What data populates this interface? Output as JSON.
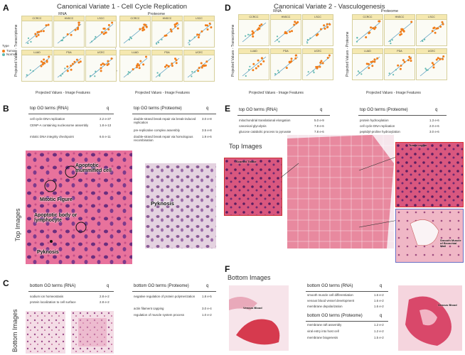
{
  "panels": {
    "A": {
      "letter": "A",
      "title": "Canonical Variate 1 - Cell Cycle Replication",
      "rna_label": "RNA",
      "proteome_label": "Proteome",
      "ylabel_rna": "Projected Values - Transcriptome",
      "ylabel_prot": "Projected Values - Proteome",
      "xlabel": "Projected Values - Image Features",
      "facets": [
        "CCRCC",
        "HNSCC",
        "LSCC",
        "LUAD",
        "PDA",
        "UCEC"
      ],
      "legend_title": "Type",
      "legend_items": [
        "Tumor",
        "Normal"
      ]
    },
    "D": {
      "letter": "D",
      "title": "Canonical Variate 2 - Vasculogenesis",
      "rna_label": "RNA",
      "proteome_label": "Proteome",
      "ylabel_rna": "Projected Values - Transcriptome",
      "ylabel_prot": "Projected Values - Proteome",
      "xlabel": "Projected Values - Image Features",
      "facets": [
        "CCRCC",
        "HNSCC",
        "LSCC",
        "LUAD",
        "PDA",
        "UCEC"
      ]
    },
    "B": {
      "letter": "B",
      "rna_header": "top GO terms (RNA)",
      "prot_header": "top GO terms (Proteome)",
      "q": "q",
      "rna_terms": [
        {
          "term": "cell cycle DNA replication",
          "q": "2.2 e-27"
        },
        {
          "term": "CENP-A containing nucleosome assembly",
          "q": "1.8 e-13"
        },
        {
          "term": "mitotic DNA integrity checkpoint",
          "q": "6.6 e-11"
        }
      ],
      "prot_terms": [
        {
          "term": "double-strand break repair via break-induced replication",
          "q": "3.0 e-8"
        },
        {
          "term": "pre-replicative complex assembly",
          "q": "3.5 e-8"
        },
        {
          "term": "double-strand break repair via homologous recombination",
          "q": "1.9 e-6"
        }
      ],
      "side_label": "Top Images",
      "annotations": [
        "Apoptotic mummified cell",
        "Mitotic Figure",
        "Apoptotic body or lymphocyte",
        "Pyknosis",
        "Pyknosis"
      ]
    },
    "C": {
      "letter": "C",
      "rna_header": "bottom GO terms (RNA)",
      "prot_header": "bottom GO terms (Proteome)",
      "q": "q",
      "rna_terms": [
        {
          "term": "sodium ion homeostasis",
          "q": "2.8 e-2"
        },
        {
          "term": "protein localization to cell surface",
          "q": "2.8 e-2"
        }
      ],
      "prot_terms": [
        {
          "term": "negative regulation of protein polymerization",
          "q": "1.8 e-5"
        },
        {
          "term": "actin filament capping",
          "q": "3.0 e-4"
        },
        {
          "term": "regulation of muscle system process",
          "q": "1.0 e-2"
        }
      ],
      "side_label": "Bottom Images"
    },
    "E": {
      "letter": "E",
      "rna_header": "top GO terms (RNA)",
      "prot_header": "top GO terms (Proteome)",
      "q": "q",
      "rna_terms": [
        {
          "term": "mitochondrial translational elongation",
          "q": "5.0 e-9"
        },
        {
          "term": "canonical glycolysis",
          "q": "7.8 e-6"
        },
        {
          "term": "glucose catabolic process to pyruvate",
          "q": "7.8 e-6"
        }
      ],
      "prot_terms": [
        {
          "term": "protein hydroxylation",
          "q": "1.3 e-6"
        },
        {
          "term": "cell cycle DNA replication",
          "q": "2.0 e-6"
        },
        {
          "term": "peptidyl-proline hydroxylation",
          "q": "3.0 e-6"
        }
      ],
      "side_label": "Top Images",
      "annotations": [
        "Scarred Tissue",
        "Tumor region",
        "Smooth Muscle of Bronchial Wall"
      ]
    },
    "F": {
      "letter": "F",
      "side_label": "Bottom Images",
      "rna_header": "bottom GO terms (RNA)",
      "prot_header": "bottom GO terms (Proteome)",
      "q": "q",
      "rna_terms": [
        {
          "term": "smooth muscle cell differentiation",
          "q": "1.6 e-2"
        },
        {
          "term": "venous blood vessel development",
          "q": "1.6 e-2"
        },
        {
          "term": "membrane depolarization",
          "q": "1.6 e-2"
        }
      ],
      "prot_terms": [
        {
          "term": "membrane raft assembly",
          "q": "1.2 e-2"
        },
        {
          "term": "viral entry into host cell",
          "q": "1.2 e-2"
        },
        {
          "term": "membrane biogenesis",
          "q": "1.5 e-2"
        }
      ],
      "annotations": [
        "Venous Blood",
        "Venous Blood"
      ]
    }
  },
  "colors": {
    "tumor": "#f07d1a",
    "normal": "#5fb8b0",
    "facet_strip": "#f5e8b0",
    "he_pink": "#e4749a",
    "he_purple": "#7a3c8a"
  }
}
